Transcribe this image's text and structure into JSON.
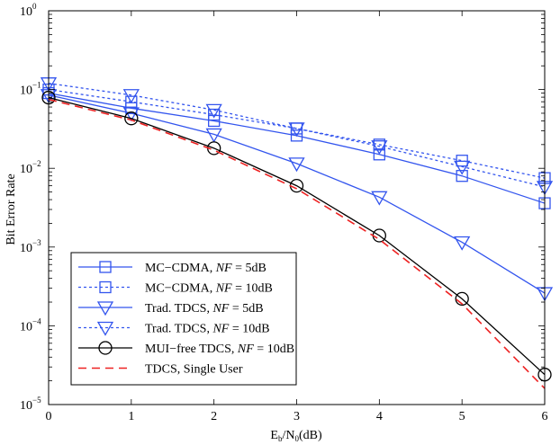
{
  "chart_data": {
    "type": "line",
    "xlabel": {
      "base": "E",
      "sub1": "b",
      "mid": "/N",
      "sub2": "0",
      "tail": "(dB)"
    },
    "ylabel": "Bit Error Rate",
    "xlim": [
      0,
      6
    ],
    "ylim": [
      1e-05,
      1
    ],
    "yscale": "log",
    "grid": false,
    "legend_position": "lower-left",
    "x_ticks": [
      "0",
      "1",
      "2",
      "3",
      "4",
      "5",
      "6"
    ],
    "y_ticks": [
      {
        "value": 1,
        "base": "10",
        "exp": "0"
      },
      {
        "value": 0.1,
        "base": "10",
        "exp": "−1"
      },
      {
        "value": 0.01,
        "base": "10",
        "exp": "−2"
      },
      {
        "value": 0.001,
        "base": "10",
        "exp": "−3"
      },
      {
        "value": 0.0001,
        "base": "10",
        "exp": "−4"
      },
      {
        "value": 1e-05,
        "base": "10",
        "exp": "−5"
      }
    ],
    "x": [
      0,
      1,
      2,
      3,
      4,
      5,
      6
    ],
    "series": [
      {
        "name": {
          "pre": "MC−CDMA, ",
          "it": "NF",
          "post": " = 5dB"
        },
        "color": "#3355ee",
        "dash": "solid",
        "marker": "square",
        "values": [
          0.09,
          0.058,
          0.04,
          0.026,
          0.015,
          0.008,
          0.0036
        ]
      },
      {
        "name": {
          "pre": "MC−CDMA, ",
          "it": "NF",
          "post": " = 10dB"
        },
        "color": "#3355ee",
        "dash": "dotted",
        "marker": "square",
        "values": [
          0.1,
          0.07,
          0.048,
          0.032,
          0.02,
          0.0125,
          0.0075
        ]
      },
      {
        "name": {
          "pre": "Trad. TDCS, ",
          "it": "NF",
          "post": " = 5dB"
        },
        "color": "#3355ee",
        "dash": "solid",
        "marker": "triangle-down",
        "values": [
          0.085,
          0.05,
          0.027,
          0.0115,
          0.0043,
          0.00115,
          0.00026
        ]
      },
      {
        "name": {
          "pre": "Trad. TDCS, ",
          "it": "NF",
          "post": " = 10dB"
        },
        "color": "#3355ee",
        "dash": "dotted",
        "marker": "triangle-down",
        "values": [
          0.12,
          0.085,
          0.055,
          0.032,
          0.019,
          0.0105,
          0.0058
        ]
      },
      {
        "name": {
          "pre": "MUI−free TDCS, ",
          "it": "NF",
          "post": " = 10dB"
        },
        "color": "#000000",
        "dash": "solid",
        "marker": "circle",
        "values": [
          0.079,
          0.043,
          0.018,
          0.006,
          0.0014,
          0.00022,
          2.4e-05
        ]
      },
      {
        "name": {
          "pre": "TDCS, Single User",
          "it": "",
          "post": ""
        },
        "color": "#ee2222",
        "dash": "dashed",
        "marker": "none",
        "values": [
          0.075,
          0.041,
          0.017,
          0.0055,
          0.00125,
          0.00019,
          1.6e-05
        ]
      }
    ]
  }
}
